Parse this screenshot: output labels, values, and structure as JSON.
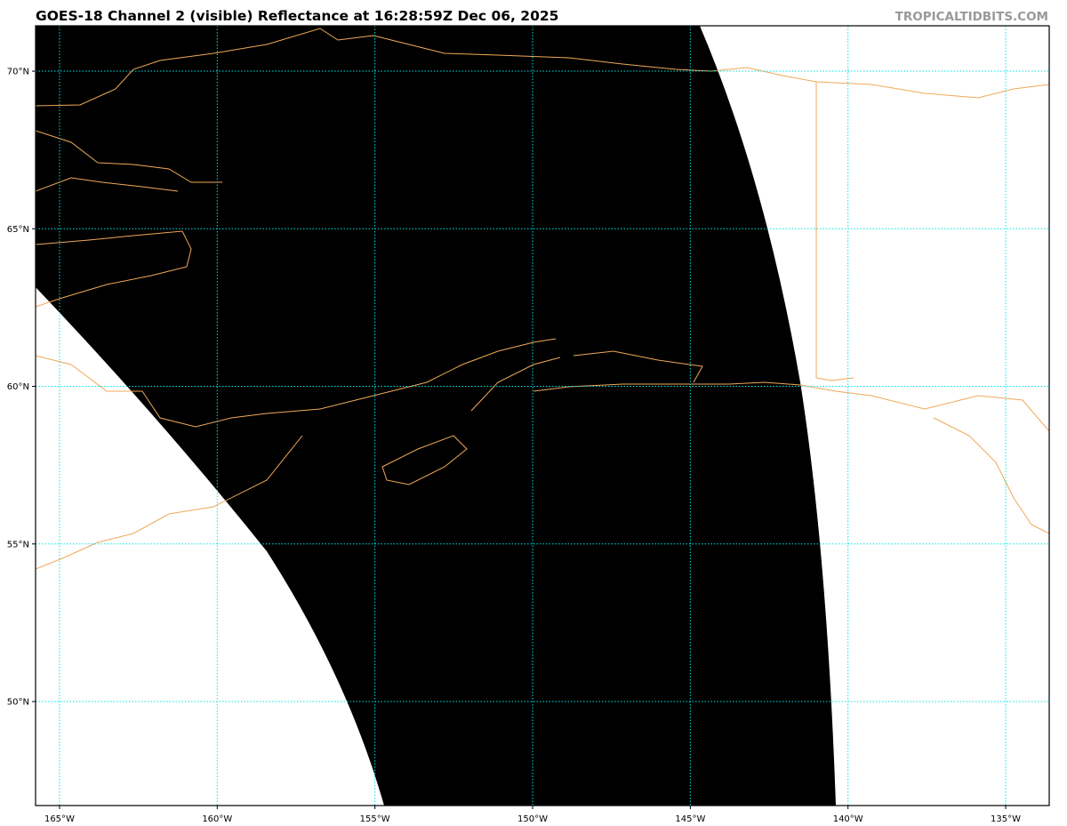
{
  "header": {
    "title": "GOES-18 Channel 2 (visible) Reflectance at 16:28:59Z Dec 06, 2025",
    "watermark": "TROPICALTIDBITS.COM"
  },
  "map": {
    "projection": "equirectangular",
    "extent": {
      "lon": [
        -165.76,
        -133.62
      ],
      "lat": [
        46.7,
        71.44
      ]
    },
    "lon_ticks": [
      {
        "value": -165,
        "label": "165°W"
      },
      {
        "value": -160,
        "label": "160°W"
      },
      {
        "value": -155,
        "label": "155°W"
      },
      {
        "value": -150,
        "label": "150°W"
      },
      {
        "value": -145,
        "label": "145°W"
      },
      {
        "value": -140,
        "label": "140°W"
      },
      {
        "value": -135,
        "label": "135°W"
      }
    ],
    "lat_ticks": [
      {
        "value": 70,
        "label": "70°N"
      },
      {
        "value": 65,
        "label": "65°N"
      },
      {
        "value": 60,
        "label": "60°N"
      },
      {
        "value": 55,
        "label": "55°N"
      },
      {
        "value": 50,
        "label": "50°N"
      }
    ],
    "colors": {
      "gridlines": "#00e5e5",
      "coastline": "#f0a858",
      "swath": "#000000",
      "no_data": "#ffffff",
      "watermark": "#999999"
    }
  }
}
